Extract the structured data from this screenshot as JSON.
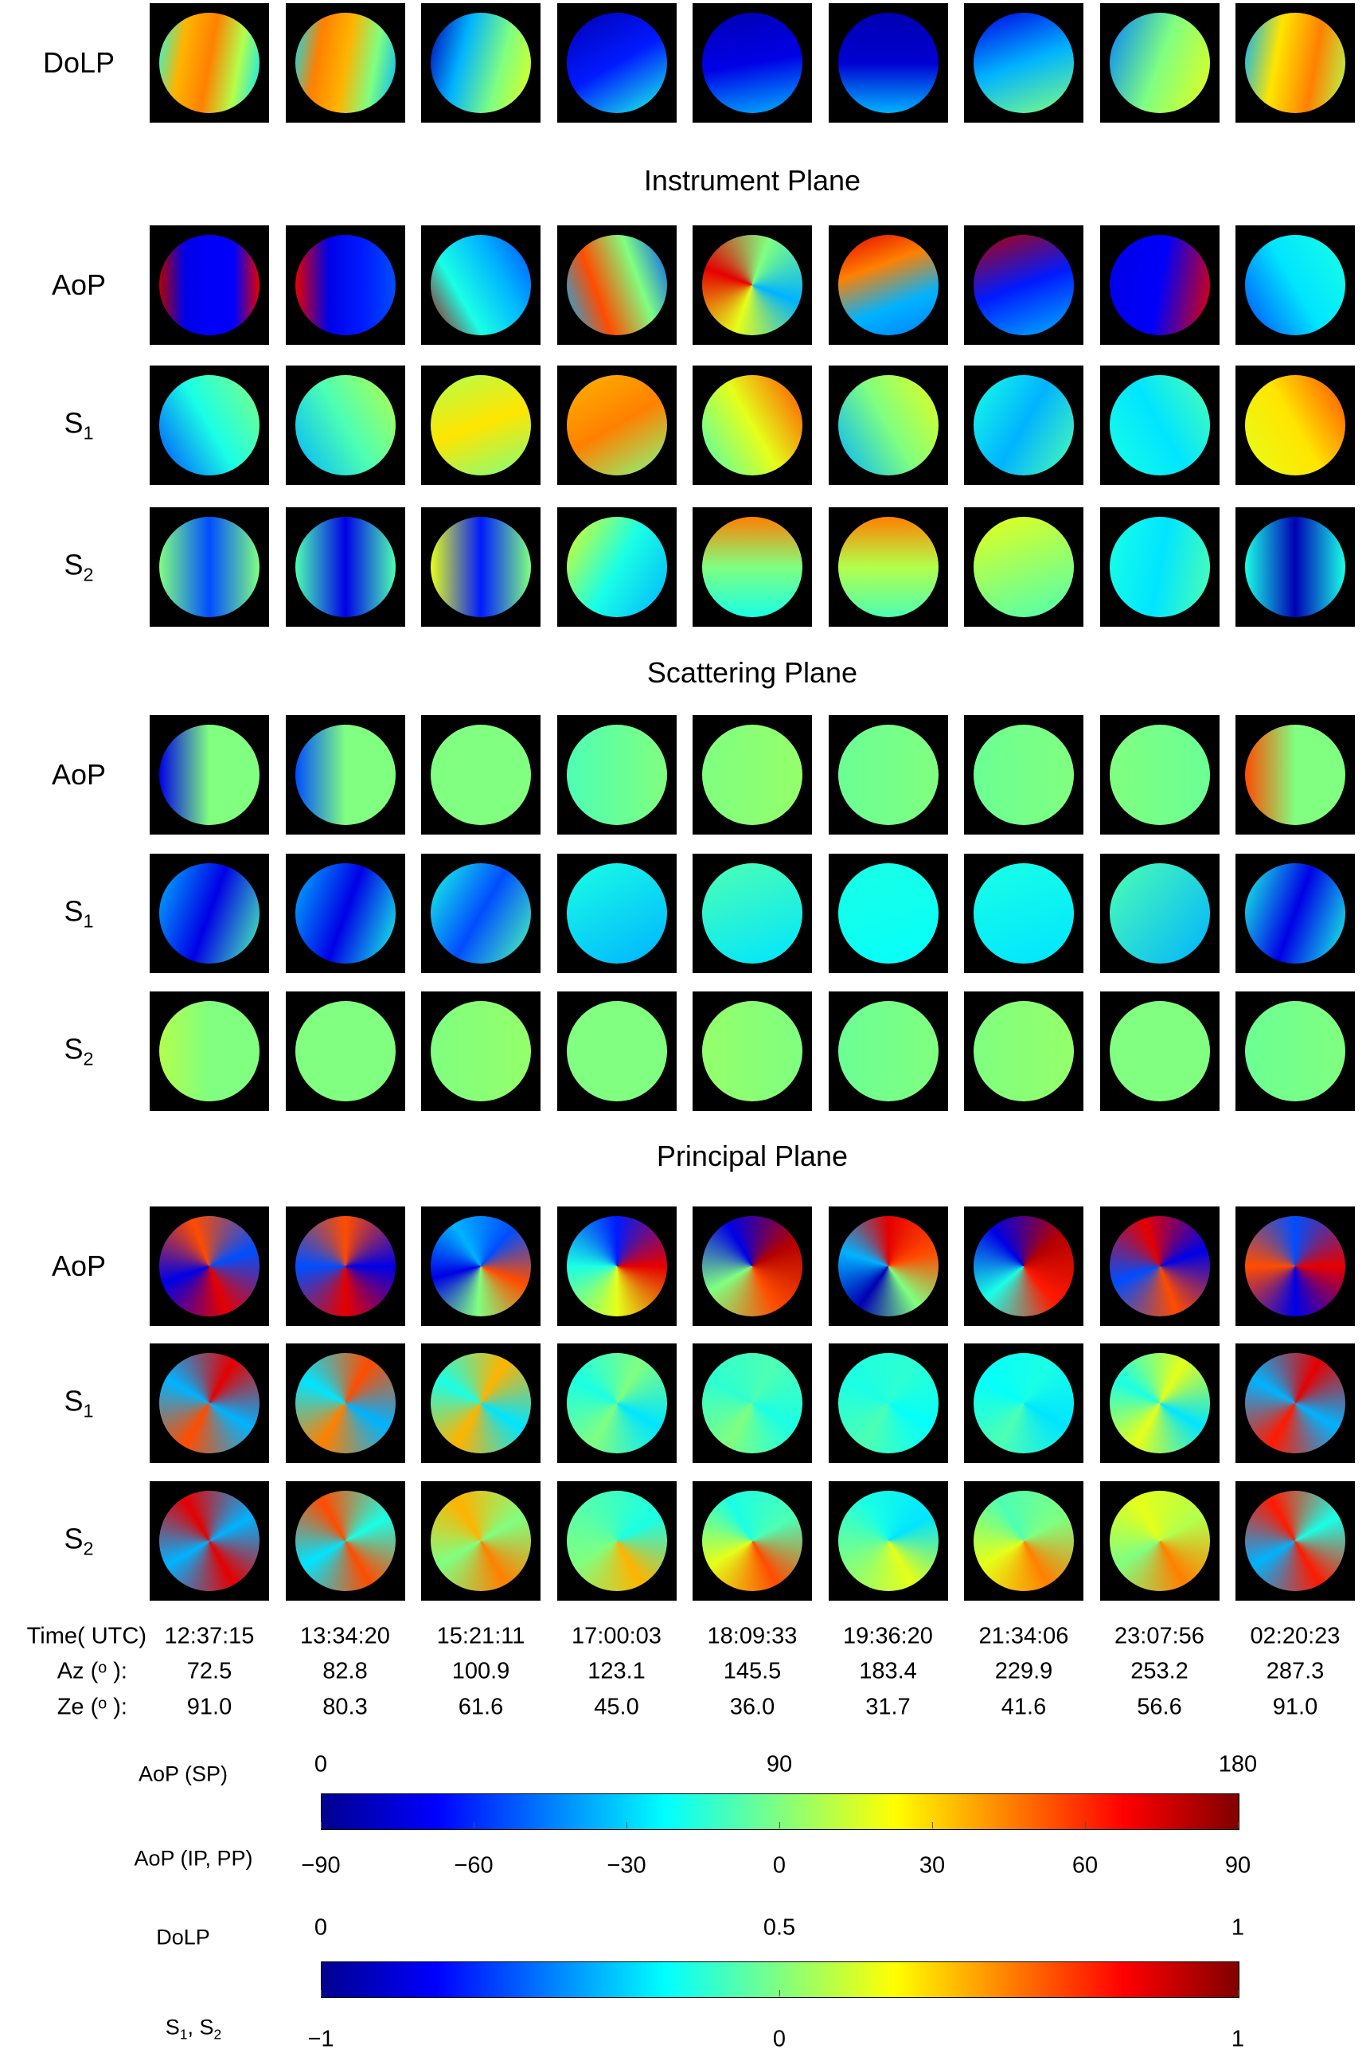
{
  "rows": [
    {
      "label": "DoLP"
    },
    {
      "label": "AoP"
    },
    {
      "label": "S",
      "sub": "1"
    },
    {
      "label": "S",
      "sub": "2"
    },
    {
      "label": "AoP"
    },
    {
      "label": "S",
      "sub": "1"
    },
    {
      "label": "S",
      "sub": "2"
    },
    {
      "label": "AoP"
    },
    {
      "label": "S",
      "sub": "1"
    },
    {
      "label": "S",
      "sub": "2"
    }
  ],
  "sections": [
    "Instrument Plane",
    "Scattering Plane",
    "Principal Plane"
  ],
  "table": {
    "headers": [
      "Time( UTC)",
      "Az (ᵒ ):",
      "Ze (ᵒ ):"
    ],
    "rows": [
      [
        "12:37:15",
        "13:34:20",
        "15:21:11",
        "17:00:03",
        "18:09:33",
        "19:36:20",
        "21:34:06",
        "23:07:56",
        "02:20:23"
      ],
      [
        "72.5",
        "82.8",
        "100.9",
        "123.1",
        "145.5",
        "183.4",
        "229.9",
        "253.2",
        "287.3"
      ],
      [
        "91.0",
        "80.3",
        "61.6",
        "45.0",
        "36.0",
        "31.7",
        "41.6",
        "56.6",
        "91.0"
      ]
    ]
  },
  "colorbars": [
    {
      "top_label": "AoP (SP)",
      "top_lim": [
        0,
        180
      ],
      "top_ticks": [
        0,
        90,
        180
      ],
      "bottom_label": "AoP (IP, PP)",
      "bottom_lim": [
        -90,
        90
      ],
      "bottom_ticks": [
        {
          "value": -90,
          "label": "−90"
        },
        {
          "value": -60,
          "label": "−60"
        },
        {
          "value": -30,
          "label": "−30"
        },
        0,
        30,
        60,
        90
      ]
    },
    {
      "top_label": "DoLP",
      "top_lim": [
        0,
        1
      ],
      "top_ticks": [
        0,
        0.5,
        1
      ],
      "bottom_label": "S",
      "bottom_label_sub": "1",
      "bottom_label_mid": ", S",
      "bottom_label_sub2": "2",
      "bottom_lim": [
        -1,
        1
      ],
      "bottom_ticks": [
        {
          "value": -1,
          "label": "−1"
        },
        0,
        1
      ]
    }
  ]
}
